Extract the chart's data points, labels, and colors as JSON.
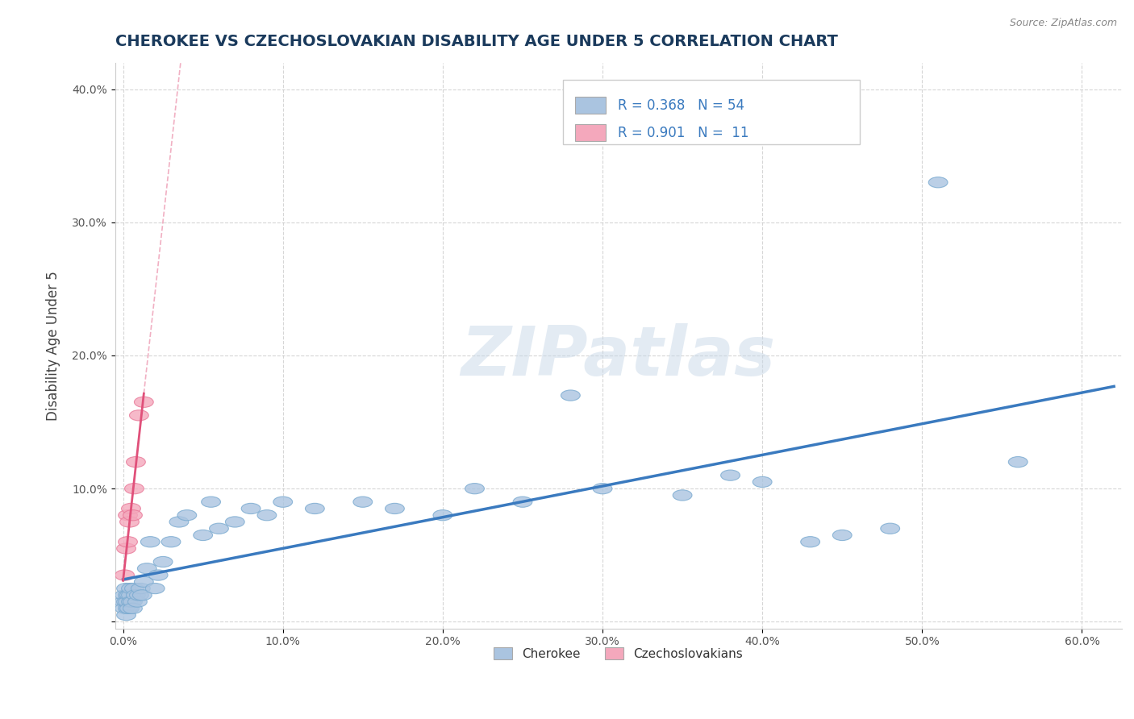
{
  "title": "CHEROKEE VS CZECHOSLOVAKIAN DISABILITY AGE UNDER 5 CORRELATION CHART",
  "source_text": "Source: ZipAtlas.com",
  "xlabel": "",
  "ylabel": "Disability Age Under 5",
  "xlim": [
    -0.005,
    0.625
  ],
  "ylim": [
    -0.005,
    0.42
  ],
  "xticks": [
    0.0,
    0.1,
    0.2,
    0.3,
    0.4,
    0.5,
    0.6
  ],
  "xticklabels": [
    "0.0%",
    "10.0%",
    "20.0%",
    "30.0%",
    "40.0%",
    "50.0%",
    "60.0%"
  ],
  "yticks": [
    0.0,
    0.1,
    0.2,
    0.3,
    0.4
  ],
  "yticklabels": [
    "",
    "10.0%",
    "20.0%",
    "30.0%",
    "40.0%"
  ],
  "cherokee_color": "#aac4e0",
  "cherokee_edge_color": "#7aaad0",
  "czech_color": "#f4a8bc",
  "czech_edge_color": "#e87898",
  "cherokee_line_color": "#3a7abf",
  "czech_line_color": "#e0507a",
  "R_cherokee": 0.368,
  "N_cherokee": 54,
  "R_czech": 0.901,
  "N_czech": 11,
  "legend_labels": [
    "Cherokee",
    "Czechoslovakians"
  ],
  "watermark": "ZIPatlas",
  "background_color": "#ffffff",
  "grid_color": "#cccccc",
  "title_color": "#1a3a5c",
  "cherokee_x": [
    0.0005,
    0.001,
    0.001,
    0.002,
    0.002,
    0.002,
    0.003,
    0.003,
    0.003,
    0.004,
    0.004,
    0.005,
    0.005,
    0.005,
    0.006,
    0.006,
    0.007,
    0.008,
    0.009,
    0.01,
    0.011,
    0.012,
    0.013,
    0.015,
    0.017,
    0.02,
    0.022,
    0.025,
    0.03,
    0.035,
    0.04,
    0.05,
    0.055,
    0.06,
    0.07,
    0.08,
    0.09,
    0.1,
    0.12,
    0.15,
    0.17,
    0.2,
    0.22,
    0.25,
    0.28,
    0.3,
    0.35,
    0.38,
    0.4,
    0.43,
    0.45,
    0.48,
    0.51,
    0.56
  ],
  "cherokee_y": [
    0.015,
    0.02,
    0.01,
    0.025,
    0.015,
    0.005,
    0.02,
    0.01,
    0.015,
    0.02,
    0.01,
    0.02,
    0.015,
    0.025,
    0.015,
    0.01,
    0.025,
    0.02,
    0.015,
    0.02,
    0.025,
    0.02,
    0.03,
    0.04,
    0.06,
    0.025,
    0.035,
    0.045,
    0.06,
    0.075,
    0.08,
    0.065,
    0.09,
    0.07,
    0.075,
    0.085,
    0.08,
    0.09,
    0.085,
    0.09,
    0.085,
    0.08,
    0.1,
    0.09,
    0.17,
    0.1,
    0.095,
    0.11,
    0.105,
    0.06,
    0.065,
    0.07,
    0.33,
    0.12
  ],
  "czech_x": [
    0.001,
    0.002,
    0.003,
    0.003,
    0.004,
    0.005,
    0.006,
    0.007,
    0.008,
    0.01,
    0.013
  ],
  "czech_y": [
    0.035,
    0.055,
    0.06,
    0.08,
    0.075,
    0.085,
    0.08,
    0.1,
    0.12,
    0.155,
    0.165
  ]
}
